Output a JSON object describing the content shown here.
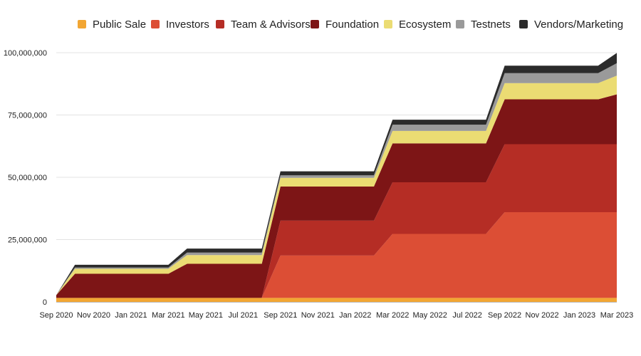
{
  "chart_data": {
    "type": "area",
    "stacked": true,
    "title": "",
    "xlabel": "",
    "ylabel": "",
    "ylim": [
      0,
      100000000
    ],
    "y_ticks": [
      0,
      25000000,
      50000000,
      75000000,
      100000000
    ],
    "y_tick_labels": [
      "0",
      "25,000,000",
      "50,000,000",
      "75,000,000",
      "100,000,000"
    ],
    "x_tick_labels": [
      "Sep 2020",
      "Nov 2020",
      "Jan 2021",
      "Mar 2021",
      "May 2021",
      "Jul 2021",
      "Sep 2021",
      "Nov 2021",
      "Jan 2022",
      "Mar 2022",
      "May 2022",
      "Jul 2022",
      "Sep 2022",
      "Nov 2022",
      "Jan 2023",
      "Mar 2023"
    ],
    "x_months": [
      0,
      1,
      2,
      3,
      4,
      5,
      6,
      7,
      8,
      9,
      10,
      11,
      12,
      13,
      14,
      15,
      16,
      17,
      18,
      19,
      20,
      21,
      22,
      23,
      24,
      25,
      26,
      27,
      28,
      29,
      30
    ],
    "x_month_labels": [
      "Sep 2020",
      "Oct 2020",
      "Nov 2020",
      "Dec 2020",
      "Jan 2021",
      "Feb 2021",
      "Mar 2021",
      "Apr 2021",
      "May 2021",
      "Jun 2021",
      "Jul 2021",
      "Aug 2021",
      "Sep 2021",
      "Oct 2021",
      "Nov 2021",
      "Dec 2021",
      "Jan 2022",
      "Feb 2022",
      "Mar 2022",
      "Apr 2022",
      "May 2022",
      "Jun 2022",
      "Jul 2022",
      "Aug 2022",
      "Sep 2022",
      "Oct 2022",
      "Nov 2022",
      "Dec 2022",
      "Jan 2023",
      "Feb 2023",
      "Mar 2023"
    ],
    "grid": "horizontal",
    "legend_position": "top",
    "series": [
      {
        "name": "Public Sale",
        "color": "#F2A633",
        "values": [
          1600000,
          1600000,
          1600000,
          1600000,
          1600000,
          1600000,
          1600000,
          1600000,
          1600000,
          1600000,
          1600000,
          1600000,
          1600000,
          1600000,
          1600000,
          1600000,
          1600000,
          1600000,
          1600000,
          1600000,
          1600000,
          1600000,
          1600000,
          1600000,
          1600000,
          1600000,
          1600000,
          1600000,
          1600000,
          1600000,
          1600000
        ]
      },
      {
        "name": "Investors",
        "color": "#DC4E35",
        "values": [
          0,
          0,
          0,
          0,
          0,
          0,
          0,
          0,
          0,
          0,
          0,
          0,
          17000000,
          17000000,
          17000000,
          17000000,
          17000000,
          17000000,
          25700000,
          25700000,
          25700000,
          25700000,
          25700000,
          25700000,
          34400000,
          34400000,
          34400000,
          34400000,
          34400000,
          34400000,
          34400000
        ]
      },
      {
        "name": "Team & Advisors",
        "color": "#B52D25",
        "values": [
          0,
          0,
          0,
          0,
          0,
          0,
          0,
          0,
          0,
          0,
          0,
          0,
          14000000,
          14000000,
          14000000,
          14000000,
          14000000,
          14000000,
          20700000,
          20700000,
          20700000,
          20700000,
          20700000,
          20700000,
          27300000,
          27300000,
          27300000,
          27300000,
          27300000,
          27300000,
          27300000
        ]
      },
      {
        "name": "Foundation",
        "color": "#7D1516",
        "values": [
          1100000,
          9700000,
          9700000,
          9700000,
          9700000,
          9700000,
          9700000,
          13700000,
          13700000,
          13700000,
          13700000,
          13700000,
          13700000,
          13700000,
          13700000,
          13700000,
          13700000,
          13700000,
          15600000,
          15600000,
          15600000,
          15600000,
          15600000,
          15600000,
          18000000,
          18000000,
          18000000,
          18000000,
          18000000,
          18000000,
          20000000
        ]
      },
      {
        "name": "Ecosystem",
        "color": "#EBDC73",
        "values": [
          0,
          2000000,
          2000000,
          2000000,
          2000000,
          2000000,
          2000000,
          3500000,
          3500000,
          3500000,
          3500000,
          3500000,
          3500000,
          3500000,
          3500000,
          3500000,
          3500000,
          3500000,
          5000000,
          5000000,
          5000000,
          5000000,
          5000000,
          5000000,
          6500000,
          6500000,
          6500000,
          6500000,
          6500000,
          6500000,
          7500000
        ]
      },
      {
        "name": "Testnets",
        "color": "#9A9A9A",
        "values": [
          0,
          500000,
          500000,
          500000,
          500000,
          500000,
          500000,
          1000000,
          1000000,
          1000000,
          1000000,
          1000000,
          1000000,
          1000000,
          1000000,
          1000000,
          1000000,
          1000000,
          2500000,
          2500000,
          2500000,
          2500000,
          2500000,
          2500000,
          4000000,
          4000000,
          4000000,
          4000000,
          4000000,
          4000000,
          5000000
        ]
      },
      {
        "name": "Vendors/Marketing",
        "color": "#2B2B2B",
        "values": [
          0,
          1100000,
          1100000,
          1100000,
          1100000,
          1100000,
          1100000,
          1600000,
          1600000,
          1600000,
          1600000,
          1600000,
          1600000,
          1600000,
          1600000,
          1600000,
          1600000,
          1600000,
          2000000,
          2000000,
          2000000,
          2000000,
          2000000,
          2000000,
          3000000,
          3000000,
          3000000,
          3000000,
          3000000,
          3000000,
          4100000
        ]
      }
    ]
  }
}
